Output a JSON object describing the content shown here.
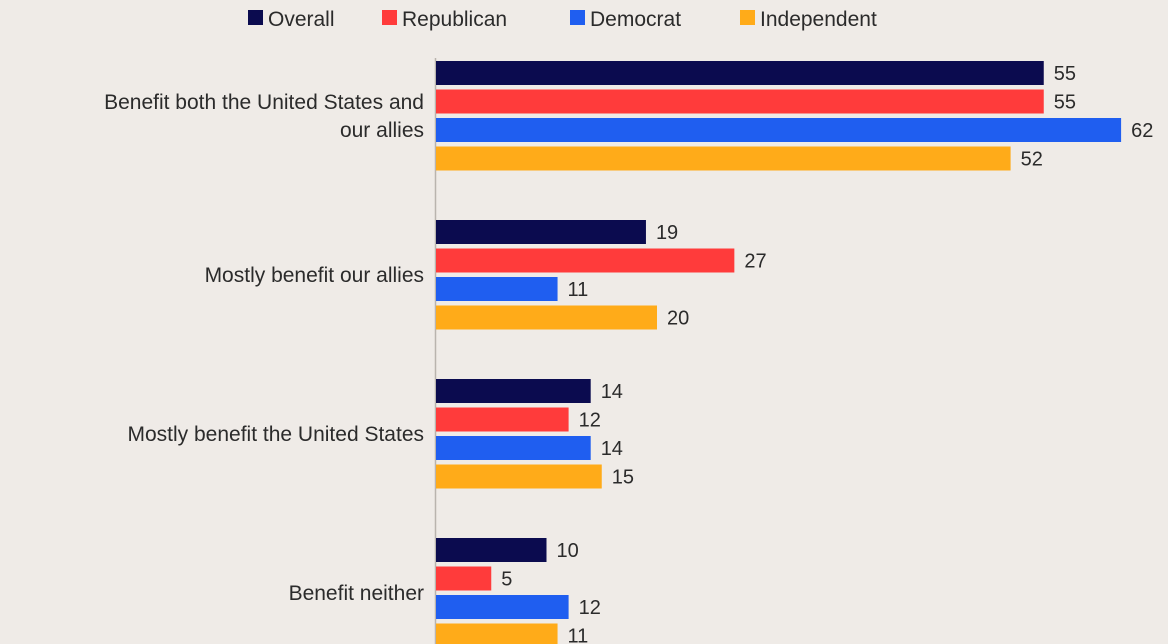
{
  "chart_data": {
    "type": "bar",
    "orientation": "horizontal",
    "title": "",
    "xlabel": "",
    "ylabel": "",
    "grid": false,
    "legend_position": "top-center",
    "xlim": [
      0,
      65
    ],
    "categories": [
      [
        "Benefit both the United States and",
        "our allies"
      ],
      [
        "Mostly benefit our allies"
      ],
      [
        "Mostly benefit the United States"
      ],
      [
        "Benefit neither"
      ]
    ],
    "series": [
      {
        "name": "Overall",
        "color": "#0b0b4f",
        "values": [
          55,
          19,
          14,
          10
        ]
      },
      {
        "name": "Republican",
        "color": "#ff3b3b",
        "values": [
          55,
          27,
          12,
          5
        ]
      },
      {
        "name": "Democrat",
        "color": "#1f5ef0",
        "values": [
          62,
          11,
          14,
          12
        ]
      },
      {
        "name": "Independent",
        "color": "#ffab19",
        "values": [
          52,
          20,
          15,
          11
        ]
      }
    ]
  }
}
